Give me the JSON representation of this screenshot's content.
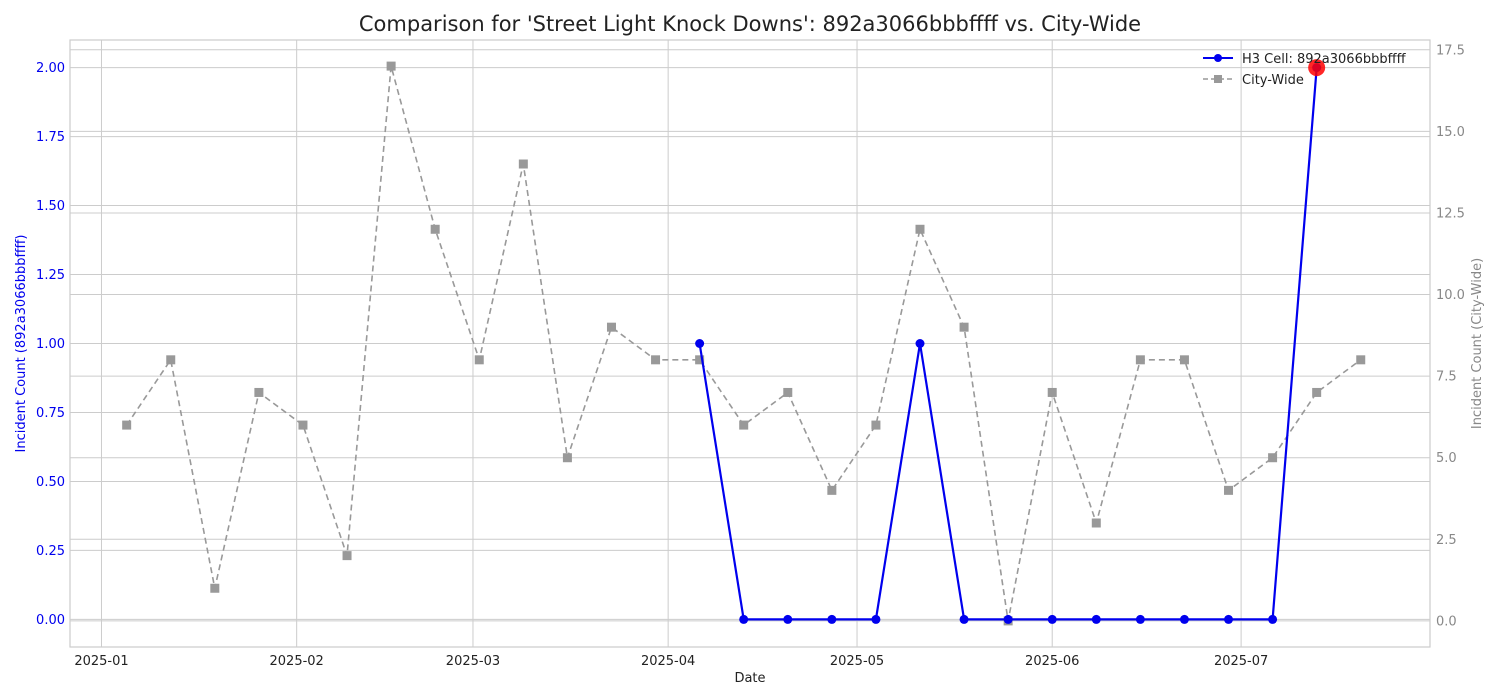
{
  "chart_data": {
    "type": "line",
    "title": "Comparison for 'Street Light Knock Downs': 892a3066bbbffff vs. City-Wide",
    "xlabel": "Date",
    "ylabel_left": "Incident Count (892a3066bbbffff)",
    "ylabel_right": "Incident Count (City-Wide)",
    "x_tick_labels": [
      "2025-01",
      "2025-02",
      "2025-03",
      "2025-04",
      "2025-05",
      "2025-06",
      "2025-07"
    ],
    "x_tick_dates": [
      "2025-01-01",
      "2025-02-01",
      "2025-03-01",
      "2025-04-01",
      "2025-05-01",
      "2025-06-01",
      "2025-07-01"
    ],
    "x_range": [
      "2024-12-27",
      "2025-07-31"
    ],
    "y_left_range": [
      -0.1,
      2.1
    ],
    "y_left_ticks": [
      "0.00",
      "0.25",
      "0.50",
      "0.75",
      "1.00",
      "1.25",
      "1.50",
      "1.75",
      "2.00"
    ],
    "y_right_range": [
      -0.8,
      17.8
    ],
    "y_right_ticks": [
      "0.0",
      "2.5",
      "5.0",
      "7.5",
      "10.0",
      "12.5",
      "15.0",
      "17.5"
    ],
    "grid": true,
    "legend_position": "top-right",
    "series": [
      {
        "name": "H3 Cell: 892a3066bbbffff",
        "axis": "left",
        "color": "#0000ee",
        "style": "solid",
        "marker": "circle",
        "x": [
          "2025-04-06",
          "2025-04-13",
          "2025-04-20",
          "2025-04-27",
          "2025-05-04",
          "2025-05-11",
          "2025-05-18",
          "2025-05-25",
          "2025-06-01",
          "2025-06-08",
          "2025-06-15",
          "2025-06-22",
          "2025-06-29",
          "2025-07-06",
          "2025-07-13"
        ],
        "y": [
          1,
          0,
          0,
          0,
          0,
          1,
          0,
          0,
          0,
          0,
          0,
          0,
          0,
          0,
          2
        ]
      },
      {
        "name": "City-Wide",
        "axis": "right",
        "color": "#999999",
        "style": "dashed",
        "marker": "square",
        "x": [
          "2025-01-05",
          "2025-01-12",
          "2025-01-19",
          "2025-01-26",
          "2025-02-02",
          "2025-02-09",
          "2025-02-16",
          "2025-02-23",
          "2025-03-02",
          "2025-03-09",
          "2025-03-16",
          "2025-03-23",
          "2025-03-30",
          "2025-04-06",
          "2025-04-13",
          "2025-04-20",
          "2025-04-27",
          "2025-05-04",
          "2025-05-11",
          "2025-05-18",
          "2025-05-25",
          "2025-06-01",
          "2025-06-08",
          "2025-06-15",
          "2025-06-22",
          "2025-06-29",
          "2025-07-06",
          "2025-07-13",
          "2025-07-20"
        ],
        "y": [
          6,
          8,
          1,
          7,
          6,
          2,
          17,
          12,
          8,
          14,
          5,
          9,
          8,
          8,
          6,
          7,
          4,
          6,
          12,
          9,
          0,
          7,
          3,
          8,
          8,
          4,
          5,
          7,
          8
        ]
      }
    ],
    "highlight": {
      "series": 0,
      "x": "2025-07-13",
      "y": 2,
      "color": "#ff0000"
    }
  }
}
